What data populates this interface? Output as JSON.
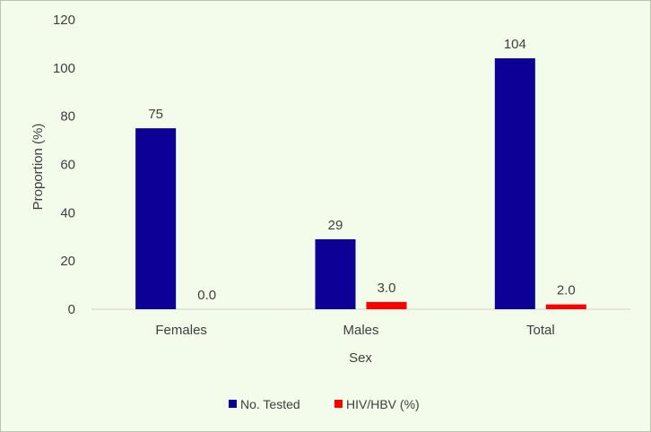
{
  "chart_data": {
    "type": "bar",
    "categories": [
      "Females",
      "Males",
      "Total"
    ],
    "series": [
      {
        "name": "No. Tested",
        "values": [
          75,
          29,
          104
        ],
        "labels": [
          "75",
          "29",
          "104"
        ],
        "color": "#0c0096"
      },
      {
        "name": "HIV/HBV (%)",
        "values": [
          0.0,
          3.0,
          2.0
        ],
        "labels": [
          "0.0",
          "3.0",
          "2.0"
        ],
        "color": "#ff0000"
      }
    ],
    "xlabel": "Sex",
    "ylabel": "Proportion (%)",
    "ylim": [
      0,
      120
    ],
    "yticks": [
      0,
      20,
      40,
      60,
      80,
      100,
      120
    ],
    "grid": false,
    "legend": "bottom"
  }
}
